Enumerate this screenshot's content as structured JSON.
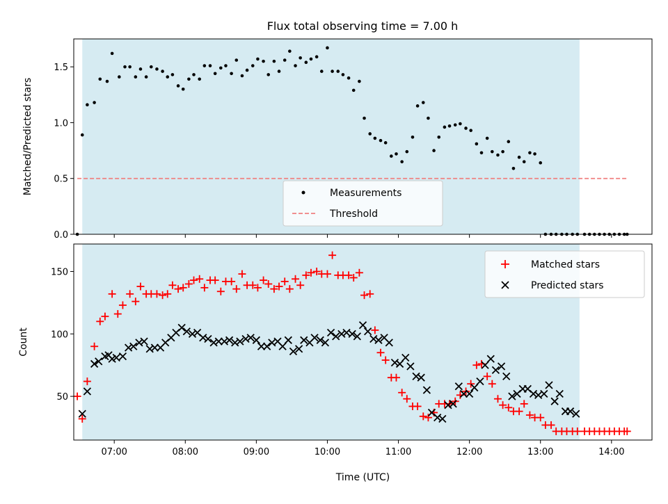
{
  "chart_data": [
    {
      "type": "scatter",
      "title": "Flux total observing time = 7.00 h",
      "xlabel": "",
      "ylabel": "Matched/Predicted stars",
      "xlim": [
        6.43,
        14.57
      ],
      "ylim": [
        0,
        1.75
      ],
      "yticks": [
        0,
        0.5,
        1.0,
        1.5
      ],
      "ytick_labels": [
        "0.0",
        "0.5",
        "1.0",
        "1.5"
      ],
      "observing_window": [
        6.55,
        13.55
      ],
      "threshold": 0.5,
      "threshold_x": [
        6.48,
        14.22
      ],
      "legend_location": "lower center",
      "grid": false,
      "series": [
        {
          "name": "Measurements",
          "color": "#000000",
          "x": [
            6.48,
            6.55,
            6.62,
            6.72,
            6.8,
            6.9,
            6.97,
            7.07,
            7.15,
            7.22,
            7.3,
            7.37,
            7.45,
            7.52,
            7.6,
            7.68,
            7.75,
            7.82,
            7.9,
            7.97,
            8.05,
            8.12,
            8.2,
            8.27,
            8.35,
            8.42,
            8.5,
            8.57,
            8.65,
            8.72,
            8.8,
            8.87,
            8.95,
            9.02,
            9.1,
            9.17,
            9.25,
            9.32,
            9.4,
            9.47,
            9.55,
            9.62,
            9.7,
            9.77,
            9.85,
            9.92,
            10.0,
            10.07,
            10.15,
            10.22,
            10.3,
            10.37,
            10.45,
            10.52,
            10.6,
            10.67,
            10.75,
            10.82,
            10.9,
            10.97,
            11.05,
            11.12,
            11.2,
            11.27,
            11.35,
            11.42,
            11.5,
            11.57,
            11.65,
            11.72,
            11.8,
            11.87,
            11.95,
            12.02,
            12.1,
            12.17,
            12.25,
            12.32,
            12.4,
            12.47,
            12.55,
            12.62,
            12.7,
            12.77,
            12.85,
            12.92,
            13.0,
            13.07,
            13.15,
            13.22,
            13.3,
            13.37,
            13.45,
            13.52,
            13.62,
            13.69,
            13.76,
            13.83,
            13.9,
            13.97,
            14.04,
            14.11,
            14.18,
            14.22
          ],
          "y": [
            0.0,
            0.89,
            1.16,
            1.18,
            1.39,
            1.37,
            1.62,
            1.41,
            1.5,
            1.5,
            1.41,
            1.48,
            1.41,
            1.5,
            1.48,
            1.46,
            1.41,
            1.43,
            1.33,
            1.3,
            1.39,
            1.43,
            1.39,
            1.51,
            1.51,
            1.44,
            1.49,
            1.51,
            1.44,
            1.56,
            1.42,
            1.47,
            1.51,
            1.57,
            1.55,
            1.43,
            1.55,
            1.46,
            1.56,
            1.64,
            1.51,
            1.58,
            1.54,
            1.57,
            1.59,
            1.46,
            1.67,
            1.46,
            1.46,
            1.43,
            1.4,
            1.29,
            1.37,
            1.04,
            0.9,
            0.86,
            0.84,
            0.82,
            0.7,
            0.72,
            0.65,
            0.74,
            0.87,
            1.15,
            1.18,
            1.04,
            0.75,
            0.87,
            0.96,
            0.97,
            0.98,
            0.99,
            0.95,
            0.93,
            0.81,
            0.73,
            0.86,
            0.74,
            0.71,
            0.74,
            0.83,
            0.59,
            0.69,
            0.65,
            0.73,
            0.72,
            0.64,
            0.0,
            0.0,
            0.0,
            0.0,
            0.0,
            0.0,
            0.0,
            0.0,
            0.0,
            0.0,
            0.0,
            0.0,
            0.0,
            0.0,
            0.0,
            0.0,
            0.0
          ]
        },
        {
          "name": "Threshold",
          "color": "#f08080",
          "style": "dashed"
        }
      ]
    },
    {
      "type": "scatter",
      "title": "",
      "xlabel": "Time (UTC)",
      "ylabel": "Count",
      "xlim": [
        6.43,
        14.57
      ],
      "ylim": [
        15,
        172
      ],
      "yticks": [
        50,
        100,
        150
      ],
      "xticks": [
        7,
        8,
        9,
        10,
        11,
        12,
        13,
        14
      ],
      "xtick_labels": [
        "07:00",
        "08:00",
        "09:00",
        "10:00",
        "11:00",
        "12:00",
        "13:00",
        "14:00"
      ],
      "observing_window": [
        6.55,
        13.55
      ],
      "legend_location": "upper right",
      "grid": false,
      "series": [
        {
          "name": "Matched stars",
          "marker": "+",
          "color": "#ff0000",
          "x": [
            6.48,
            6.55,
            6.62,
            6.72,
            6.8,
            6.87,
            6.97,
            7.05,
            7.12,
            7.22,
            7.3,
            7.37,
            7.45,
            7.52,
            7.6,
            7.68,
            7.75,
            7.82,
            7.9,
            7.97,
            8.05,
            8.12,
            8.2,
            8.27,
            8.35,
            8.42,
            8.5,
            8.57,
            8.65,
            8.72,
            8.8,
            8.87,
            8.95,
            9.02,
            9.1,
            9.17,
            9.25,
            9.32,
            9.4,
            9.47,
            9.55,
            9.62,
            9.7,
            9.77,
            9.85,
            9.92,
            10.0,
            10.07,
            10.15,
            10.22,
            10.3,
            10.37,
            10.45,
            10.52,
            10.6,
            10.67,
            10.75,
            10.82,
            10.9,
            10.97,
            11.05,
            11.12,
            11.2,
            11.27,
            11.35,
            11.42,
            11.5,
            11.57,
            11.65,
            11.72,
            11.8,
            11.87,
            11.95,
            12.02,
            12.1,
            12.17,
            12.25,
            12.32,
            12.4,
            12.47,
            12.55,
            12.62,
            12.7,
            12.77,
            12.85,
            12.92,
            13.0,
            13.07,
            13.15,
            13.22,
            13.3,
            13.37,
            13.45,
            13.52,
            13.62,
            13.69,
            13.76,
            13.83,
            13.9,
            13.97,
            14.04,
            14.11,
            14.18,
            14.22
          ],
          "y": [
            50,
            32,
            62,
            90,
            110,
            114,
            132,
            116,
            123,
            132,
            126,
            138,
            132,
            132,
            132,
            131,
            132,
            139,
            136,
            137,
            140,
            143,
            144,
            137,
            143,
            143,
            134,
            142,
            142,
            136,
            148,
            139,
            139,
            137,
            143,
            140,
            136,
            138,
            142,
            136,
            144,
            139,
            147,
            149,
            150,
            148,
            148,
            163,
            147,
            147,
            147,
            145,
            149,
            131,
            132,
            103,
            85,
            79,
            65,
            65,
            53,
            48,
            42,
            42,
            34,
            33,
            37,
            44,
            44,
            44,
            46,
            51,
            54,
            60,
            75,
            76,
            66,
            60,
            48,
            43,
            41,
            38,
            38,
            44,
            35,
            33,
            33,
            27,
            27,
            22,
            22,
            22,
            22,
            22,
            22,
            22,
            22,
            22,
            22,
            22,
            22,
            22,
            22,
            22
          ]
        },
        {
          "name": "Predicted stars",
          "marker": "x",
          "color": "#000000",
          "x": [
            6.55,
            6.62,
            6.72,
            6.78,
            6.87,
            6.92,
            6.97,
            7.03,
            7.12,
            7.2,
            7.27,
            7.35,
            7.42,
            7.5,
            7.57,
            7.65,
            7.72,
            7.8,
            7.87,
            7.95,
            8.02,
            8.1,
            8.17,
            8.25,
            8.32,
            8.4,
            8.47,
            8.55,
            8.62,
            8.7,
            8.77,
            8.85,
            8.92,
            9.0,
            9.07,
            9.15,
            9.22,
            9.3,
            9.37,
            9.45,
            9.52,
            9.6,
            9.67,
            9.75,
            9.82,
            9.9,
            9.97,
            10.05,
            10.12,
            10.2,
            10.27,
            10.35,
            10.42,
            10.5,
            10.57,
            10.65,
            10.72,
            10.8,
            10.87,
            10.95,
            11.02,
            11.1,
            11.17,
            11.25,
            11.32,
            11.4,
            11.47,
            11.55,
            11.62,
            11.7,
            11.77,
            11.85,
            11.92,
            12.0,
            12.07,
            12.15,
            12.22,
            12.3,
            12.37,
            12.45,
            12.52,
            12.6,
            12.67,
            12.75,
            12.82,
            12.9,
            12.97,
            13.05,
            13.12,
            13.2,
            13.27,
            13.35,
            13.42,
            13.5
          ],
          "y": [
            36,
            54,
            76,
            78,
            82,
            83,
            80,
            81,
            82,
            89,
            90,
            93,
            94,
            88,
            89,
            89,
            93,
            97,
            101,
            105,
            102,
            100,
            101,
            97,
            96,
            93,
            94,
            94,
            95,
            93,
            94,
            96,
            97,
            95,
            90,
            90,
            93,
            94,
            90,
            95,
            86,
            88,
            95,
            93,
            97,
            95,
            93,
            101,
            98,
            100,
            101,
            100,
            98,
            107,
            102,
            96,
            95,
            97,
            93,
            77,
            76,
            81,
            74,
            66,
            65,
            55,
            37,
            33,
            32,
            43,
            44,
            58,
            52,
            52,
            57,
            62,
            75,
            80,
            71,
            74,
            66,
            50,
            52,
            56,
            56,
            52,
            51,
            52,
            59,
            46,
            52,
            38,
            38,
            36
          ]
        }
      ]
    }
  ]
}
